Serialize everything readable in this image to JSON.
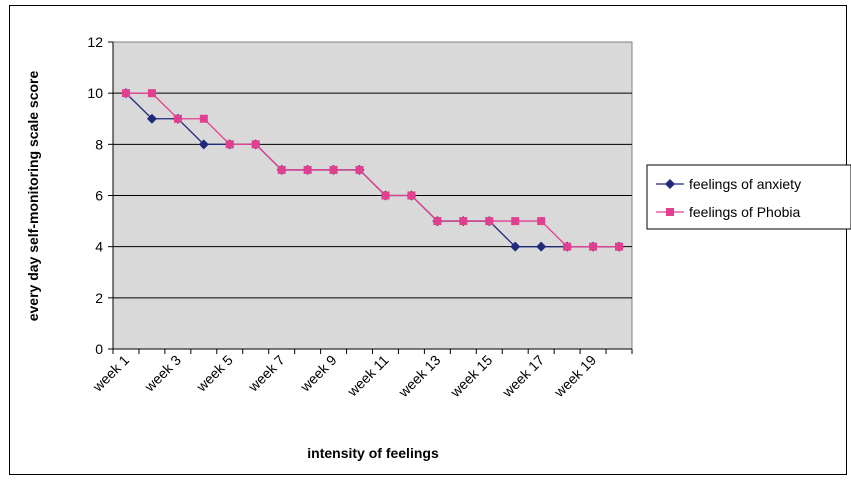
{
  "chart_data": {
    "type": "line",
    "title": "",
    "xlabel": "intensity of feelings",
    "ylabel": "every day self-monitoring scale score",
    "ylim": [
      0,
      12
    ],
    "yticks": [
      0,
      2,
      4,
      6,
      8,
      10,
      12
    ],
    "grid": true,
    "legend_position": "right",
    "x": [
      "week 1",
      "week 2",
      "week 3",
      "week 4",
      "week 5",
      "week 6",
      "week 7",
      "week 8",
      "week 9",
      "week 10",
      "week 11",
      "week 12",
      "week 13",
      "week 14",
      "week 15",
      "week 16",
      "week 17",
      "week 18",
      "week 19",
      "week 20"
    ],
    "x_tick_labels": [
      "week 1",
      "week 3",
      "week 5",
      "week 7",
      "week 9",
      "week 11",
      "week 13",
      "week 15",
      "week 17",
      "week 19"
    ],
    "series": [
      {
        "name": "feelings of anxiety",
        "color": "#1f2a7a",
        "marker": "diamond",
        "values": [
          10,
          9,
          9,
          8,
          8,
          8,
          7,
          7,
          7,
          7,
          6,
          6,
          5,
          5,
          5,
          4,
          4,
          4,
          4,
          4
        ]
      },
      {
        "name": "feelings of Phobia",
        "color": "#e0408f",
        "marker": "square",
        "values": [
          10,
          10,
          9,
          9,
          8,
          8,
          7,
          7,
          7,
          7,
          6,
          6,
          5,
          5,
          5,
          5,
          5,
          4,
          4,
          4
        ]
      }
    ],
    "plot_background": "#d9d9d9"
  }
}
